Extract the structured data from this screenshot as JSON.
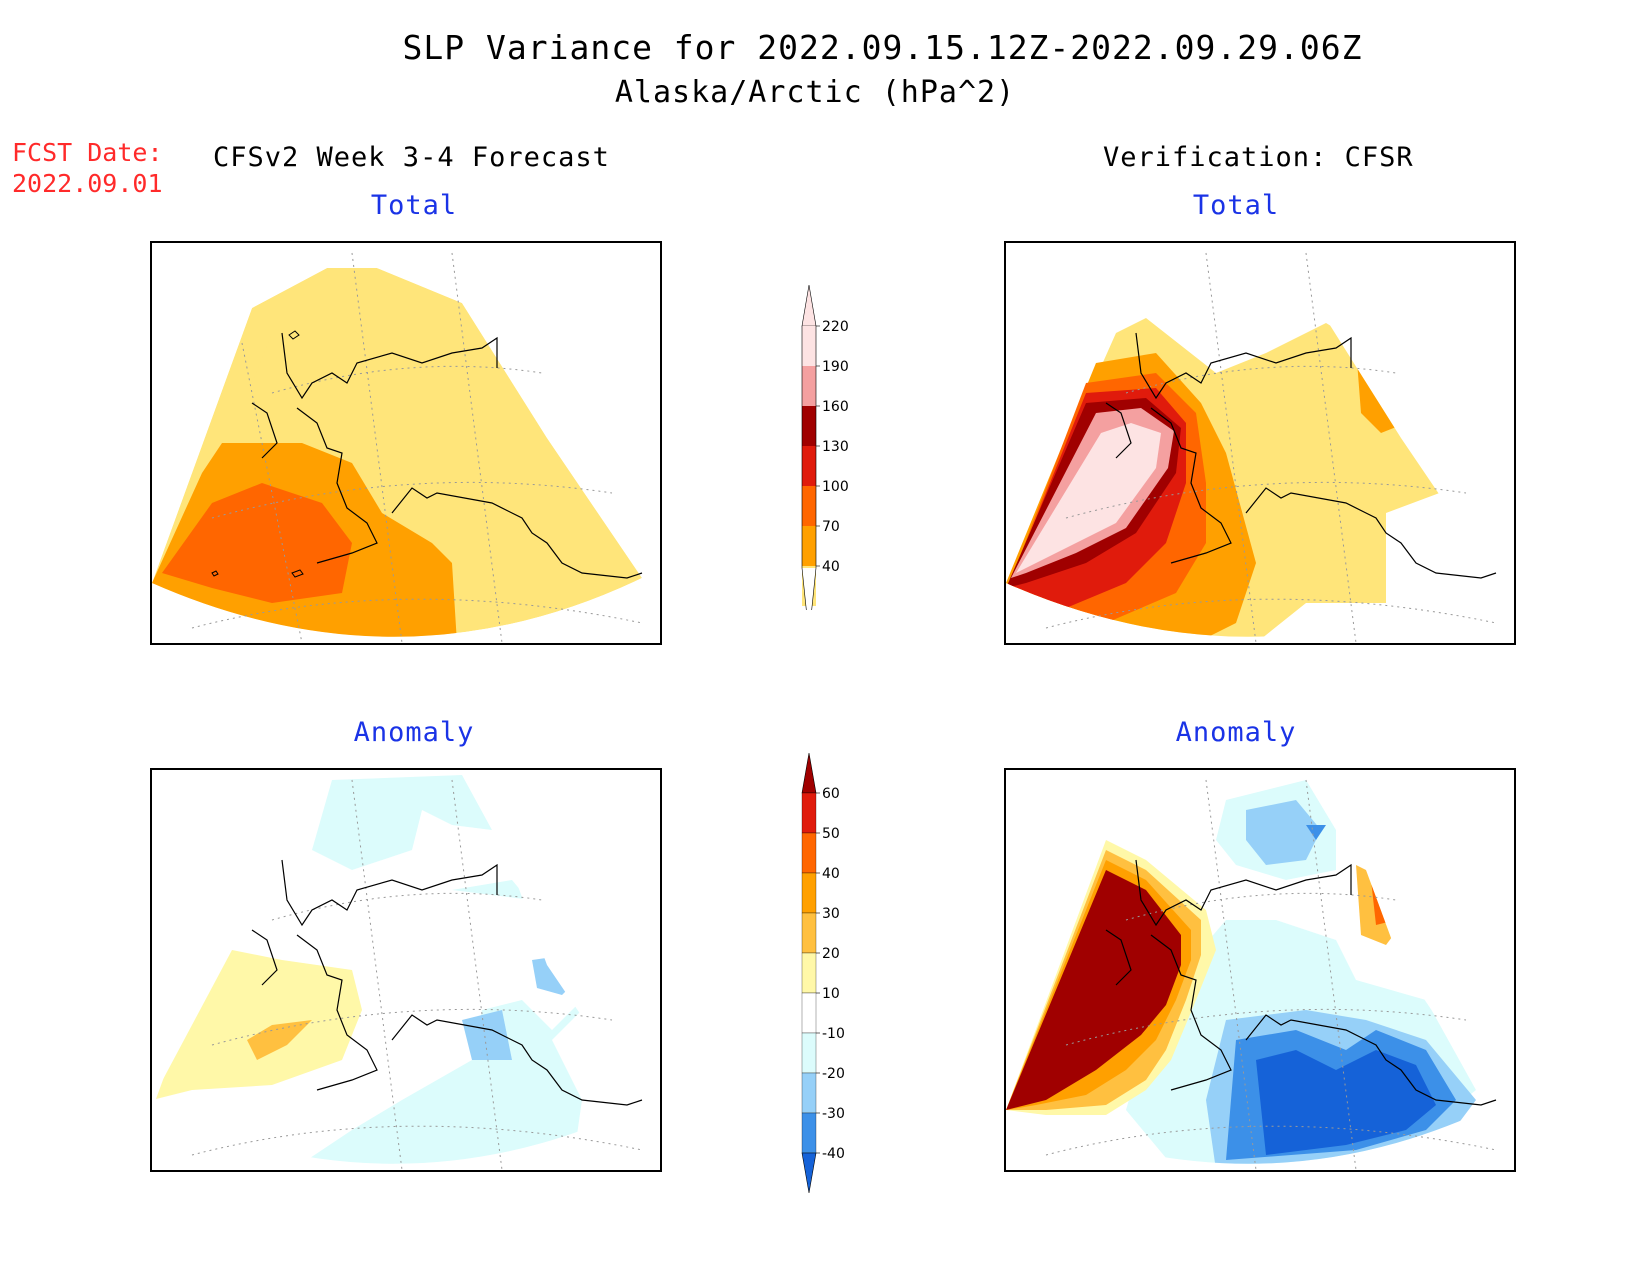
{
  "figure": {
    "title": "SLP Variance for 2022.09.15.12Z-2022.09.29.06Z",
    "subtitle": "Alaska/Arctic (hPa^2)",
    "fcst_date_label": "FCST Date:",
    "fcst_date_value": "2022.09.01",
    "forecast_heading": "CFSv2 Week 3-4 Forecast",
    "verification_heading": "Verification: CFSR"
  },
  "panels": {
    "forecast_total": {
      "title": "Total"
    },
    "verification_total": {
      "title": "Total"
    },
    "forecast_anomaly": {
      "title": "Anomaly"
    },
    "verification_anomaly": {
      "title": "Anomaly"
    }
  },
  "colorbars": {
    "total": {
      "labels": [
        "220",
        "190",
        "160",
        "130",
        "100",
        "70",
        "40"
      ],
      "colors": [
        "#fde3e3",
        "#f4a0a0",
        "#a00000",
        "#e01b0c",
        "#ff6600",
        "#ffa000",
        "#ffe57a"
      ]
    },
    "anomaly": {
      "labels": [
        "60",
        "50",
        "40",
        "30",
        "20",
        "10",
        "-10",
        "-20",
        "-30",
        "-40"
      ],
      "colors": [
        "#a00000",
        "#e01b0c",
        "#ff6600",
        "#ffa000",
        "#ffc040",
        "#fff8a8",
        "#ffffff",
        "#dcfcfc",
        "#96d0f8",
        "#3c90e8",
        "#1562d8"
      ]
    }
  }
}
